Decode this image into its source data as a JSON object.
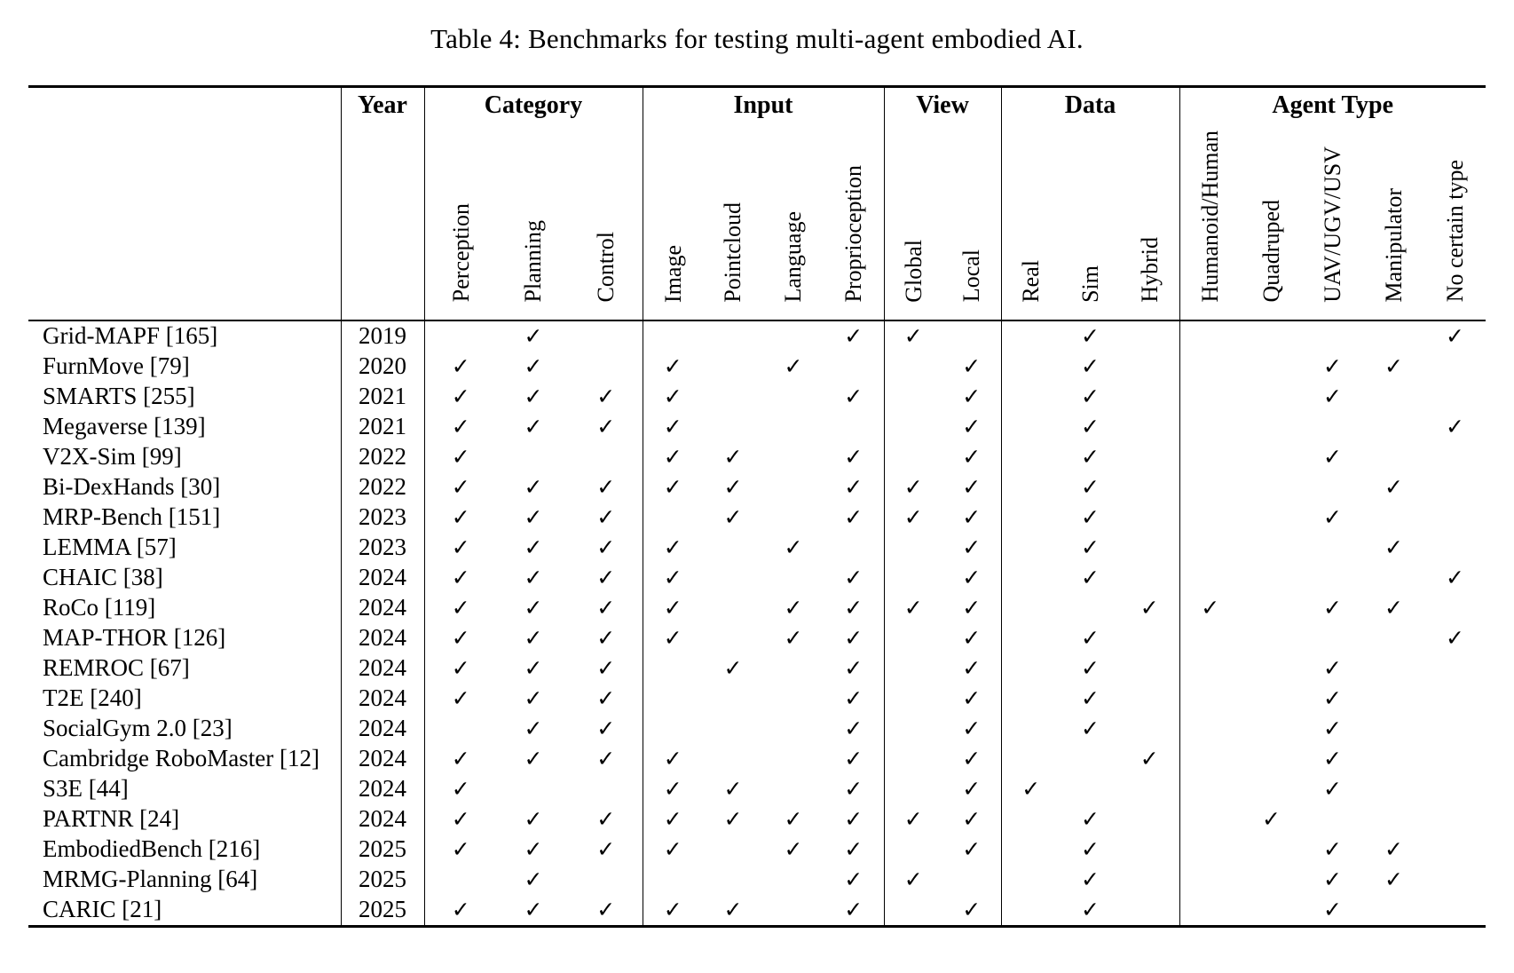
{
  "title": "Table 4: Benchmarks for testing multi-agent embodied AI.",
  "table": {
    "year_header": "Year",
    "check_glyph": "✓",
    "groups": [
      {
        "label": "Category",
        "span": 3
      },
      {
        "label": "Input",
        "span": 4
      },
      {
        "label": "View",
        "span": 2
      },
      {
        "label": "Data",
        "span": 3
      },
      {
        "label": "Agent Type",
        "span": 5
      }
    ],
    "columns": [
      "Perception",
      "Planning",
      "Control",
      "Image",
      "Pointcloud",
      "Language",
      "Proprioception",
      "Global",
      "Local",
      "Real",
      "Sim",
      "Hybrid",
      "Humanoid/Human",
      "Quadruped",
      "UAV/UGV/USV",
      "Manipulator",
      "No certain type"
    ],
    "rows": [
      {
        "name": "Grid-MAPF [165]",
        "year": "2019",
        "checks": [
          0,
          1,
          0,
          0,
          0,
          0,
          1,
          1,
          0,
          0,
          1,
          0,
          0,
          0,
          0,
          0,
          1
        ]
      },
      {
        "name": "FurnMove [79]",
        "year": "2020",
        "checks": [
          1,
          1,
          0,
          1,
          0,
          1,
          0,
          0,
          1,
          0,
          1,
          0,
          0,
          0,
          1,
          1,
          0
        ]
      },
      {
        "name": "SMARTS [255]",
        "year": "2021",
        "checks": [
          1,
          1,
          1,
          1,
          0,
          0,
          1,
          0,
          1,
          0,
          1,
          0,
          0,
          0,
          1,
          0,
          0
        ]
      },
      {
        "name": "Megaverse [139]",
        "year": "2021",
        "checks": [
          1,
          1,
          1,
          1,
          0,
          0,
          0,
          0,
          1,
          0,
          1,
          0,
          0,
          0,
          0,
          0,
          1
        ]
      },
      {
        "name": "V2X-Sim [99]",
        "year": "2022",
        "checks": [
          1,
          0,
          0,
          1,
          1,
          0,
          1,
          0,
          1,
          0,
          1,
          0,
          0,
          0,
          1,
          0,
          0
        ]
      },
      {
        "name": "Bi-DexHands [30]",
        "year": "2022",
        "checks": [
          1,
          1,
          1,
          1,
          1,
          0,
          1,
          1,
          1,
          0,
          1,
          0,
          0,
          0,
          0,
          1,
          0
        ]
      },
      {
        "name": "MRP-Bench [151]",
        "year": "2023",
        "checks": [
          1,
          1,
          1,
          0,
          1,
          0,
          1,
          1,
          1,
          0,
          1,
          0,
          0,
          0,
          1,
          0,
          0
        ]
      },
      {
        "name": "LEMMA [57]",
        "year": "2023",
        "checks": [
          1,
          1,
          1,
          1,
          0,
          1,
          0,
          0,
          1,
          0,
          1,
          0,
          0,
          0,
          0,
          1,
          0
        ]
      },
      {
        "name": "CHAIC [38]",
        "year": "2024",
        "checks": [
          1,
          1,
          1,
          1,
          0,
          0,
          1,
          0,
          1,
          0,
          1,
          0,
          0,
          0,
          0,
          0,
          1
        ]
      },
      {
        "name": "RoCo [119]",
        "year": "2024",
        "checks": [
          1,
          1,
          1,
          1,
          0,
          1,
          1,
          1,
          1,
          0,
          0,
          1,
          1,
          0,
          1,
          1,
          0
        ]
      },
      {
        "name": "MAP-THOR [126]",
        "year": "2024",
        "checks": [
          1,
          1,
          1,
          1,
          0,
          1,
          1,
          0,
          1,
          0,
          1,
          0,
          0,
          0,
          0,
          0,
          1
        ]
      },
      {
        "name": "REMROC [67]",
        "year": "2024",
        "checks": [
          1,
          1,
          1,
          0,
          1,
          0,
          1,
          0,
          1,
          0,
          1,
          0,
          0,
          0,
          1,
          0,
          0
        ]
      },
      {
        "name": "T2E [240]",
        "year": "2024",
        "checks": [
          1,
          1,
          1,
          0,
          0,
          0,
          1,
          0,
          1,
          0,
          1,
          0,
          0,
          0,
          1,
          0,
          0
        ]
      },
      {
        "name": "SocialGym 2.0 [23]",
        "year": "2024",
        "checks": [
          0,
          1,
          1,
          0,
          0,
          0,
          1,
          0,
          1,
          0,
          1,
          0,
          0,
          0,
          1,
          0,
          0
        ]
      },
      {
        "name": "Cambridge RoboMaster [12]",
        "year": "2024",
        "checks": [
          1,
          1,
          1,
          1,
          0,
          0,
          1,
          0,
          1,
          0,
          0,
          1,
          0,
          0,
          1,
          0,
          0
        ]
      },
      {
        "name": "S3E [44]",
        "year": "2024",
        "checks": [
          1,
          0,
          0,
          1,
          1,
          0,
          1,
          0,
          1,
          1,
          0,
          0,
          0,
          0,
          1,
          0,
          0
        ]
      },
      {
        "name": "PARTNR [24]",
        "year": "2024",
        "checks": [
          1,
          1,
          1,
          1,
          1,
          1,
          1,
          1,
          1,
          0,
          1,
          0,
          0,
          1,
          0,
          0,
          0
        ]
      },
      {
        "name": "EmbodiedBench [216]",
        "year": "2025",
        "checks": [
          1,
          1,
          1,
          1,
          0,
          1,
          1,
          0,
          1,
          0,
          1,
          0,
          0,
          0,
          1,
          1,
          0
        ]
      },
      {
        "name": "MRMG-Planning [64]",
        "year": "2025",
        "checks": [
          0,
          1,
          0,
          0,
          0,
          0,
          1,
          1,
          0,
          0,
          1,
          0,
          0,
          0,
          1,
          1,
          0
        ]
      },
      {
        "name": "CARIC [21]",
        "year": "2025",
        "checks": [
          1,
          1,
          1,
          1,
          1,
          0,
          1,
          0,
          1,
          0,
          1,
          0,
          0,
          0,
          1,
          0,
          0
        ]
      }
    ]
  }
}
